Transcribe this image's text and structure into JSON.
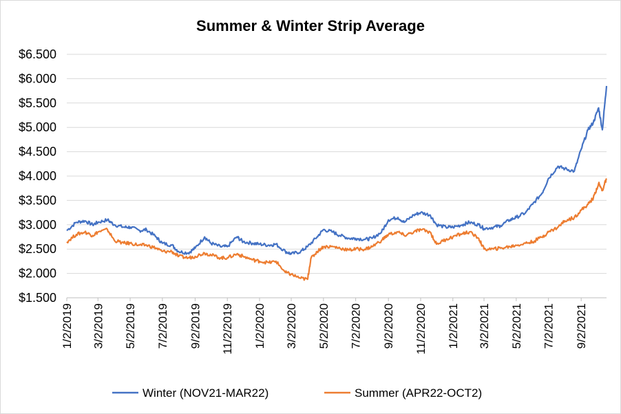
{
  "chart_data": {
    "type": "line",
    "title": "Summer & Winter Strip Average",
    "xlabel": "",
    "ylabel": "",
    "ylim": [
      1.5,
      6.5
    ],
    "y_ticks": [
      "$1.500",
      "$2.000",
      "$2.500",
      "$3.000",
      "$3.500",
      "$4.000",
      "$4.500",
      "$5.000",
      "$5.500",
      "$6.000",
      "$6.500"
    ],
    "y_tick_values": [
      1.5,
      2.0,
      2.5,
      3.0,
      3.5,
      4.0,
      4.5,
      5.0,
      5.5,
      6.0,
      6.5
    ],
    "x_tick_labels": [
      "1/2/2019",
      "3/2/2019",
      "5/2/2019",
      "7/2/2019",
      "9/2/2019",
      "11/2/2019",
      "1/2/2020",
      "3/2/2020",
      "5/2/2020",
      "7/2/2020",
      "9/2/2020",
      "11/2/2020",
      "1/2/2021",
      "3/2/2021",
      "5/2/2021",
      "7/2/2021",
      "9/2/2021"
    ],
    "x_range": [
      "2019-01-02",
      "2021-10-20"
    ],
    "grid": "horizontal",
    "legend_position": "bottom",
    "series": [
      {
        "name": "Winter (NOV21-MAR22)",
        "color": "#4472c4",
        "x": [
          "2019-01-02",
          "2019-01-20",
          "2019-02-05",
          "2019-02-20",
          "2019-03-02",
          "2019-03-20",
          "2019-04-02",
          "2019-04-20",
          "2019-05-02",
          "2019-05-20",
          "2019-06-02",
          "2019-06-20",
          "2019-07-02",
          "2019-07-20",
          "2019-08-02",
          "2019-08-20",
          "2019-09-02",
          "2019-09-20",
          "2019-10-02",
          "2019-10-20",
          "2019-11-02",
          "2019-11-20",
          "2019-12-02",
          "2019-12-20",
          "2020-01-02",
          "2020-01-20",
          "2020-02-02",
          "2020-02-20",
          "2020-03-02",
          "2020-03-20",
          "2020-04-02",
          "2020-04-20",
          "2020-05-02",
          "2020-05-20",
          "2020-06-02",
          "2020-06-20",
          "2020-07-02",
          "2020-07-20",
          "2020-08-02",
          "2020-08-20",
          "2020-09-02",
          "2020-09-20",
          "2020-10-02",
          "2020-10-20",
          "2020-11-02",
          "2020-11-20",
          "2020-12-02",
          "2020-12-20",
          "2021-01-02",
          "2021-01-20",
          "2021-02-02",
          "2021-02-20",
          "2021-03-02",
          "2021-03-20",
          "2021-04-02",
          "2021-04-20",
          "2021-05-02",
          "2021-05-20",
          "2021-06-02",
          "2021-06-20",
          "2021-07-02",
          "2021-07-20",
          "2021-08-02",
          "2021-08-20",
          "2021-09-02",
          "2021-09-15",
          "2021-09-25",
          "2021-10-05",
          "2021-10-12",
          "2021-10-20"
        ],
        "values": [
          2.88,
          3.05,
          3.08,
          3.0,
          3.05,
          3.1,
          3.0,
          2.95,
          2.95,
          2.88,
          2.9,
          2.75,
          2.62,
          2.58,
          2.45,
          2.42,
          2.52,
          2.75,
          2.62,
          2.55,
          2.55,
          2.75,
          2.65,
          2.62,
          2.6,
          2.58,
          2.6,
          2.45,
          2.4,
          2.45,
          2.55,
          2.75,
          2.9,
          2.85,
          2.78,
          2.72,
          2.72,
          2.7,
          2.72,
          2.85,
          3.1,
          3.15,
          3.05,
          3.2,
          3.25,
          3.2,
          3.0,
          2.95,
          2.95,
          3.0,
          3.05,
          3.0,
          2.92,
          2.95,
          2.98,
          3.1,
          3.15,
          3.25,
          3.42,
          3.65,
          3.95,
          4.2,
          4.15,
          4.1,
          4.55,
          4.95,
          5.1,
          5.4,
          4.95,
          5.85
        ]
      },
      {
        "name": "Summer  (APR22-OCT2)",
        "color": "#ed7d31",
        "x": [
          "2019-01-02",
          "2019-01-20",
          "2019-02-05",
          "2019-02-20",
          "2019-03-02",
          "2019-03-20",
          "2019-04-02",
          "2019-04-20",
          "2019-05-02",
          "2019-05-20",
          "2019-06-02",
          "2019-06-20",
          "2019-07-02",
          "2019-07-20",
          "2019-08-02",
          "2019-08-20",
          "2019-09-02",
          "2019-09-20",
          "2019-10-02",
          "2019-10-20",
          "2019-11-02",
          "2019-11-20",
          "2019-12-02",
          "2019-12-20",
          "2020-01-02",
          "2020-01-20",
          "2020-02-02",
          "2020-02-20",
          "2020-03-02",
          "2020-03-20",
          "2020-04-02",
          "2020-04-08",
          "2020-04-20",
          "2020-05-02",
          "2020-05-20",
          "2020-06-02",
          "2020-06-20",
          "2020-07-02",
          "2020-07-20",
          "2020-08-02",
          "2020-08-20",
          "2020-09-02",
          "2020-09-20",
          "2020-10-02",
          "2020-10-20",
          "2020-11-02",
          "2020-11-20",
          "2020-12-02",
          "2020-12-20",
          "2021-01-02",
          "2021-01-20",
          "2021-02-02",
          "2021-02-20",
          "2021-03-02",
          "2021-03-20",
          "2021-04-02",
          "2021-04-20",
          "2021-05-02",
          "2021-05-20",
          "2021-06-02",
          "2021-06-20",
          "2021-07-02",
          "2021-07-20",
          "2021-08-02",
          "2021-08-20",
          "2021-09-02",
          "2021-09-15",
          "2021-09-25",
          "2021-10-05",
          "2021-10-12",
          "2021-10-20"
        ],
        "values": [
          2.65,
          2.8,
          2.85,
          2.78,
          2.85,
          2.9,
          2.68,
          2.62,
          2.62,
          2.58,
          2.58,
          2.52,
          2.45,
          2.45,
          2.35,
          2.32,
          2.35,
          2.42,
          2.38,
          2.32,
          2.32,
          2.4,
          2.35,
          2.28,
          2.25,
          2.22,
          2.25,
          2.02,
          1.98,
          1.9,
          1.88,
          2.3,
          2.45,
          2.55,
          2.55,
          2.52,
          2.48,
          2.5,
          2.5,
          2.55,
          2.68,
          2.8,
          2.85,
          2.78,
          2.85,
          2.9,
          2.85,
          2.6,
          2.7,
          2.75,
          2.82,
          2.85,
          2.72,
          2.5,
          2.5,
          2.52,
          2.55,
          2.58,
          2.62,
          2.65,
          2.75,
          2.85,
          2.95,
          3.08,
          3.15,
          3.3,
          3.42,
          3.55,
          3.85,
          3.7,
          3.95
        ]
      }
    ]
  }
}
